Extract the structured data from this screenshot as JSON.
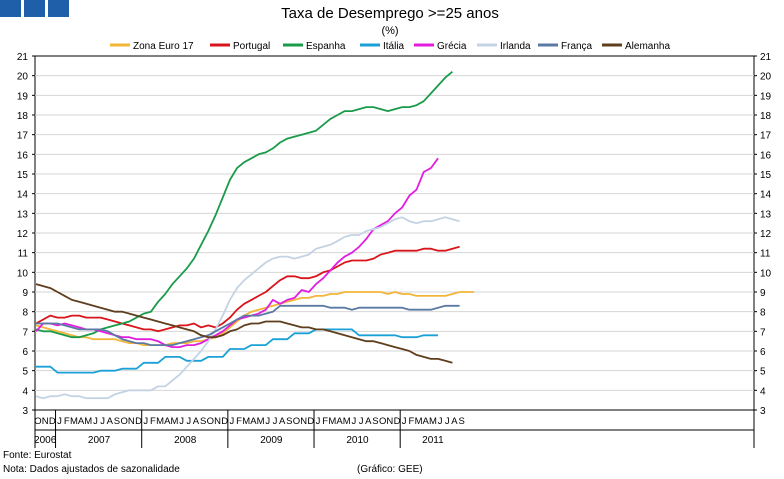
{
  "chart_data": {
    "type": "line",
    "title": "Taxa de Desemprego >=25 anos",
    "subtitle": "(%)",
    "ylim": [
      3,
      21
    ],
    "yticks": [
      3,
      4,
      5,
      6,
      7,
      8,
      9,
      10,
      11,
      12,
      13,
      14,
      15,
      16,
      17,
      18,
      19,
      20,
      21
    ],
    "x_start": "2006-10",
    "month_letters": [
      "J",
      "F",
      "M",
      "A",
      "M",
      "J",
      "J",
      "A",
      "S",
      "O",
      "N",
      "D"
    ],
    "years": [
      "2006",
      "2007",
      "2008",
      "2009",
      "2010",
      "2011"
    ],
    "series": [
      {
        "name": "Zona Euro 17",
        "color": "#f2b53a",
        "values": [
          7.3,
          7.2,
          7.1,
          7.0,
          6.9,
          6.8,
          6.7,
          6.7,
          6.6,
          6.6,
          6.6,
          6.6,
          6.5,
          6.4,
          6.4,
          6.3,
          6.3,
          6.3,
          6.3,
          6.4,
          6.4,
          6.4,
          6.5,
          6.5,
          6.6,
          6.7,
          6.9,
          7.2,
          7.5,
          7.8,
          8.0,
          8.1,
          8.2,
          8.3,
          8.4,
          8.5,
          8.6,
          8.7,
          8.7,
          8.8,
          8.8,
          8.9,
          8.9,
          9.0,
          9.0,
          9.0,
          9.0,
          9.0,
          9.0,
          8.9,
          9.0,
          8.9,
          8.9,
          8.8,
          8.8,
          8.8,
          8.8,
          8.8,
          8.9,
          9.0,
          9.0,
          9.0
        ]
      },
      {
        "name": "Portugal",
        "color": "#d9141b",
        "values": [
          7.4,
          7.6,
          7.8,
          7.7,
          7.7,
          7.8,
          7.8,
          7.7,
          7.7,
          7.7,
          7.6,
          7.5,
          7.4,
          7.3,
          7.2,
          7.1,
          7.1,
          7.0,
          7.1,
          7.2,
          7.3,
          7.3,
          7.4,
          7.2,
          7.3,
          7.2,
          7.4,
          7.7,
          8.1,
          8.4,
          8.6,
          8.8,
          9.0,
          9.3,
          9.6,
          9.8,
          9.8,
          9.7,
          9.7,
          9.8,
          10.0,
          10.1,
          10.3,
          10.5,
          10.6,
          10.6,
          10.6,
          10.7,
          10.9,
          11.0,
          11.1,
          11.1,
          11.1,
          11.1,
          11.2,
          11.2,
          11.1,
          11.1,
          11.2,
          11.3
        ]
      },
      {
        "name": "Espanha",
        "color": "#1a9b4a",
        "values": [
          7.1,
          7.0,
          7.0,
          6.9,
          6.8,
          6.7,
          6.7,
          6.8,
          6.9,
          7.1,
          7.2,
          7.3,
          7.4,
          7.5,
          7.7,
          7.9,
          8.0,
          8.5,
          8.9,
          9.4,
          9.8,
          10.2,
          10.7,
          11.4,
          12.1,
          12.9,
          13.8,
          14.7,
          15.3,
          15.6,
          15.8,
          16.0,
          16.1,
          16.3,
          16.6,
          16.8,
          16.9,
          17.0,
          17.1,
          17.2,
          17.5,
          17.8,
          18.0,
          18.2,
          18.2,
          18.3,
          18.4,
          18.4,
          18.3,
          18.2,
          18.3,
          18.4,
          18.4,
          18.5,
          18.7,
          19.1,
          19.5,
          19.9,
          20.2
        ]
      },
      {
        "name": "Itália",
        "color": "#1ba1d7",
        "values": [
          5.2,
          5.2,
          5.2,
          4.9,
          4.9,
          4.9,
          4.9,
          4.9,
          4.9,
          5.0,
          5.0,
          5.0,
          5.1,
          5.1,
          5.1,
          5.4,
          5.4,
          5.4,
          5.7,
          5.7,
          5.7,
          5.5,
          5.5,
          5.5,
          5.7,
          5.7,
          5.7,
          6.1,
          6.1,
          6.1,
          6.3,
          6.3,
          6.3,
          6.6,
          6.6,
          6.6,
          6.9,
          6.9,
          6.9,
          7.1,
          7.1,
          7.1,
          7.1,
          7.1,
          7.1,
          6.8,
          6.8,
          6.8,
          6.8,
          6.8,
          6.8,
          6.7,
          6.7,
          6.7,
          6.8,
          6.8,
          6.8
        ]
      },
      {
        "name": "Grécia",
        "color": "#e21de0",
        "values": [
          7.0,
          7.4,
          7.4,
          7.3,
          7.4,
          7.3,
          7.2,
          7.1,
          7.1,
          7.0,
          6.9,
          6.8,
          6.7,
          6.7,
          6.6,
          6.6,
          6.6,
          6.5,
          6.3,
          6.2,
          6.2,
          6.3,
          6.3,
          6.4,
          6.6,
          6.8,
          7.0,
          7.3,
          7.6,
          7.7,
          7.8,
          7.9,
          8.1,
          8.6,
          8.4,
          8.6,
          8.7,
          9.1,
          9.0,
          9.4,
          9.7,
          10.1,
          10.5,
          10.8,
          11.0,
          11.3,
          11.7,
          12.2,
          12.4,
          12.6,
          13.0,
          13.3,
          13.9,
          14.2,
          15.1,
          15.3,
          15.8
        ]
      },
      {
        "name": "Irlanda",
        "color": "#c4d3e4",
        "values": [
          3.7,
          3.6,
          3.7,
          3.7,
          3.8,
          3.7,
          3.7,
          3.6,
          3.6,
          3.6,
          3.6,
          3.8,
          3.9,
          4.0,
          4.0,
          4.0,
          4.0,
          4.2,
          4.2,
          4.5,
          4.8,
          5.2,
          5.6,
          6.0,
          6.5,
          7.1,
          7.8,
          8.6,
          9.2,
          9.6,
          9.9,
          10.2,
          10.5,
          10.7,
          10.8,
          10.8,
          10.7,
          10.8,
          10.9,
          11.2,
          11.3,
          11.4,
          11.6,
          11.8,
          11.9,
          11.9,
          12.1,
          12.2,
          12.3,
          12.5,
          12.7,
          12.8,
          12.6,
          12.5,
          12.6,
          12.6,
          12.7,
          12.8,
          12.7,
          12.6
        ]
      },
      {
        "name": "França",
        "color": "#5b7aa3",
        "values": [
          7.4,
          7.4,
          7.4,
          7.4,
          7.3,
          7.2,
          7.1,
          7.1,
          7.1,
          7.1,
          7.0,
          6.8,
          6.6,
          6.5,
          6.4,
          6.4,
          6.3,
          6.3,
          6.3,
          6.3,
          6.4,
          6.5,
          6.6,
          6.7,
          6.8,
          7.0,
          7.2,
          7.4,
          7.6,
          7.8,
          7.8,
          7.8,
          7.9,
          8.0,
          8.3,
          8.3,
          8.3,
          8.3,
          8.3,
          8.3,
          8.3,
          8.2,
          8.2,
          8.2,
          8.1,
          8.2,
          8.2,
          8.2,
          8.2,
          8.2,
          8.2,
          8.2,
          8.1,
          8.1,
          8.1,
          8.1,
          8.2,
          8.3,
          8.3,
          8.3
        ]
      },
      {
        "name": "Alemanha",
        "color": "#5e3e1c",
        "values": [
          9.4,
          9.3,
          9.2,
          9.0,
          8.8,
          8.6,
          8.5,
          8.4,
          8.3,
          8.2,
          8.1,
          8.0,
          8.0,
          7.9,
          7.8,
          7.7,
          7.6,
          7.5,
          7.4,
          7.3,
          7.2,
          7.1,
          7.0,
          6.8,
          6.7,
          6.7,
          6.8,
          7.0,
          7.1,
          7.3,
          7.4,
          7.4,
          7.5,
          7.5,
          7.5,
          7.4,
          7.3,
          7.2,
          7.2,
          7.1,
          7.1,
          7.0,
          6.9,
          6.8,
          6.7,
          6.6,
          6.5,
          6.5,
          6.4,
          6.3,
          6.2,
          6.1,
          6.0,
          5.8,
          5.7,
          5.6,
          5.6,
          5.5,
          5.4
        ]
      }
    ]
  },
  "footer": {
    "source": "Fonte: Eurostat",
    "note": "Nota: Dados ajustados de sazonalidade",
    "credit": "(Gráfico: GEE)"
  }
}
